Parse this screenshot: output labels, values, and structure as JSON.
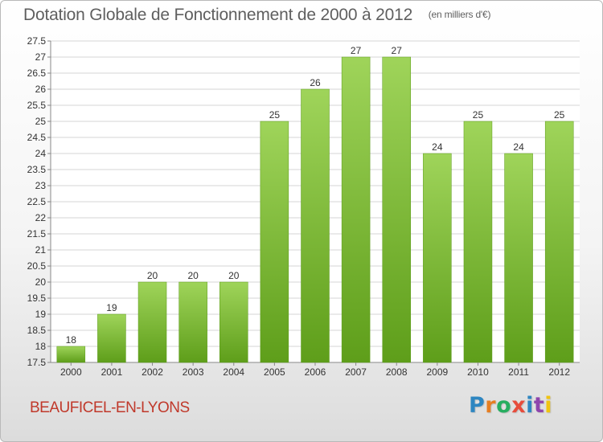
{
  "chart_data": {
    "type": "bar",
    "title": "Dotation Globale de Fonctionnement de 2000 à 2012",
    "subtitle": "(en milliers d'€)",
    "categories": [
      "2000",
      "2001",
      "2002",
      "2003",
      "2004",
      "2005",
      "2006",
      "2007",
      "2008",
      "2009",
      "2010",
      "2011",
      "2012"
    ],
    "values": [
      18,
      19,
      20,
      20,
      20,
      25,
      26,
      27,
      27,
      24,
      25,
      24,
      25
    ],
    "ylim": [
      17.5,
      27.5
    ],
    "yticks": [
      17.5,
      18,
      18.5,
      19,
      19.5,
      20,
      20.5,
      21,
      21.5,
      22,
      22.5,
      23,
      23.5,
      24,
      24.5,
      25,
      25.5,
      26,
      26.5,
      27,
      27.5
    ],
    "grid": true,
    "bar_color": "#7cc035",
    "xlabel": "",
    "ylabel": ""
  },
  "footer": {
    "commune": "BEAUFICEL-EN-LYONS",
    "logo": "Proxiti",
    "logo_colors": [
      "#2e86c1",
      "#e67e22",
      "#27ae60",
      "#e74c3c",
      "#2e86c1",
      "#8e44ad",
      "#f1c40f"
    ]
  }
}
